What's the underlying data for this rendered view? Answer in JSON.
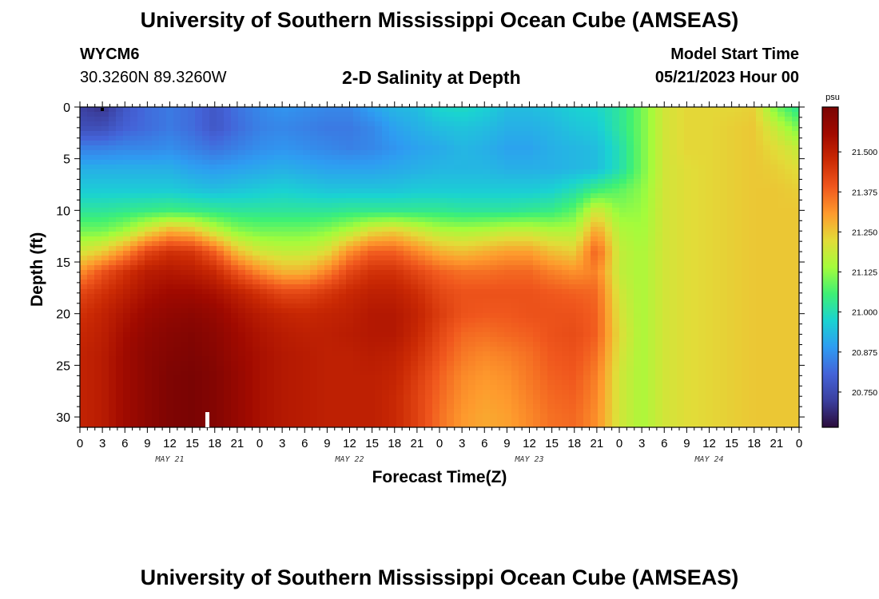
{
  "header": {
    "title": "University of Southern Mississippi Ocean Cube (AMSEAS)",
    "station_id": "WYCM6",
    "coords": "30.3260N  89.3260W",
    "plot_title": "2-D Salinity at Depth",
    "model_start_label": "Model Start Time",
    "model_start_value": "05/21/2023 Hour 00"
  },
  "footer": {
    "title": "University of Southern Mississippi Ocean Cube (AMSEAS)"
  },
  "colors": {
    "scale": [
      "#2b0c3b",
      "#3b3f9e",
      "#4463d8",
      "#2e9cf2",
      "#1ad3d1",
      "#3ef075",
      "#a4fc3b",
      "#e2dc38",
      "#fe9b2d",
      "#f0571d",
      "#cb2a04",
      "#a10a00",
      "#7a0403"
    ]
  },
  "chart_data": {
    "type": "heatmap",
    "title": "2-D Salinity at Depth",
    "xlabel": "Forecast Time(Z)",
    "ylabel": "Depth (ft)",
    "x_hours": [
      0,
      96
    ],
    "x_tick_labels": [
      "0",
      "3",
      "6",
      "9",
      "12",
      "15",
      "18",
      "21",
      "0",
      "3",
      "6",
      "9",
      "12",
      "15",
      "18",
      "21",
      "0",
      "3",
      "6",
      "9",
      "12",
      "15",
      "18",
      "21",
      "0",
      "3",
      "6",
      "9",
      "12",
      "15",
      "18",
      "21",
      "0"
    ],
    "day_labels": [
      "MAY 21",
      "MAY 22",
      "MAY 23",
      "MAY 24"
    ],
    "y_range_ft": [
      0,
      31
    ],
    "y_tick_labels": [
      "0",
      "5",
      "10",
      "15",
      "20",
      "25",
      "30"
    ],
    "colorbar": {
      "unit": "psu",
      "range": [
        20.64,
        21.64
      ],
      "ticks": [
        "21.500",
        "21.375",
        "21.250",
        "21.125",
        "21.000",
        "20.875",
        "20.750"
      ]
    },
    "salinity_psu": {
      "note_rows": "rows = depth 0,2,4,...,30 ft; columns = forecast hour 0,3,...,96",
      "depths_ft": [
        0,
        2,
        4,
        6,
        8,
        10,
        12,
        14,
        16,
        18,
        20,
        22,
        24,
        26,
        28,
        30
      ],
      "values": [
        [
          20.73,
          20.7,
          20.78,
          20.82,
          20.84,
          20.82,
          20.78,
          20.83,
          20.86,
          20.88,
          20.87,
          20.86,
          20.86,
          20.9,
          20.93,
          20.94,
          20.98,
          20.99,
          20.97,
          20.94,
          20.94,
          20.95,
          20.97,
          20.98,
          21.02,
          21.1,
          21.2,
          21.23,
          21.23,
          21.23,
          21.24,
          21.1,
          21.02
        ],
        [
          20.76,
          20.76,
          20.8,
          20.82,
          20.84,
          20.82,
          20.78,
          20.82,
          20.85,
          20.86,
          20.85,
          20.84,
          20.84,
          20.86,
          20.9,
          20.92,
          20.94,
          20.95,
          20.94,
          20.92,
          20.92,
          20.93,
          20.95,
          20.96,
          21.02,
          21.1,
          21.2,
          21.23,
          21.23,
          21.24,
          21.25,
          21.18,
          21.1
        ],
        [
          20.85,
          20.85,
          20.86,
          20.86,
          20.87,
          20.85,
          20.83,
          20.85,
          20.87,
          20.88,
          20.87,
          20.86,
          20.85,
          20.86,
          20.88,
          20.9,
          20.91,
          20.93,
          20.92,
          20.9,
          20.9,
          20.92,
          20.93,
          20.94,
          21.0,
          21.1,
          21.2,
          21.23,
          21.23,
          21.24,
          21.25,
          21.22,
          21.18
        ],
        [
          20.92,
          20.92,
          20.92,
          20.92,
          20.92,
          20.9,
          20.89,
          20.9,
          20.91,
          20.92,
          20.91,
          20.9,
          20.9,
          20.9,
          20.91,
          20.92,
          20.93,
          20.93,
          20.93,
          20.92,
          20.92,
          20.92,
          20.93,
          20.94,
          21.0,
          21.1,
          21.2,
          21.22,
          21.23,
          21.24,
          21.25,
          21.24,
          21.22
        ],
        [
          20.96,
          20.96,
          20.96,
          20.96,
          20.96,
          20.95,
          20.94,
          20.95,
          20.96,
          20.97,
          20.96,
          20.95,
          20.95,
          20.95,
          20.95,
          20.96,
          20.96,
          20.96,
          20.96,
          20.96,
          20.96,
          20.97,
          21.0,
          21.05,
          21.08,
          21.12,
          21.2,
          21.22,
          21.23,
          21.24,
          21.25,
          21.25,
          21.24
        ],
        [
          21.02,
          21.02,
          21.03,
          21.04,
          21.05,
          21.04,
          21.03,
          21.02,
          21.02,
          21.02,
          21.02,
          21.02,
          21.03,
          21.03,
          21.03,
          21.03,
          21.03,
          21.02,
          21.02,
          21.02,
          21.03,
          21.04,
          21.08,
          21.2,
          21.12,
          21.13,
          21.2,
          21.22,
          21.23,
          21.24,
          21.25,
          21.25,
          21.25
        ],
        [
          21.1,
          21.1,
          21.14,
          21.22,
          21.28,
          21.26,
          21.18,
          21.12,
          21.1,
          21.1,
          21.1,
          21.12,
          21.16,
          21.22,
          21.24,
          21.2,
          21.16,
          21.15,
          21.16,
          21.18,
          21.18,
          21.16,
          21.16,
          21.3,
          21.16,
          21.14,
          21.2,
          21.22,
          21.23,
          21.24,
          21.25,
          21.25,
          21.25
        ],
        [
          21.2,
          21.24,
          21.32,
          21.42,
          21.46,
          21.45,
          21.38,
          21.26,
          21.2,
          21.18,
          21.18,
          21.22,
          21.32,
          21.38,
          21.38,
          21.33,
          21.28,
          21.26,
          21.28,
          21.3,
          21.3,
          21.26,
          21.24,
          21.38,
          21.18,
          21.15,
          21.2,
          21.22,
          21.23,
          21.24,
          21.25,
          21.25,
          21.25
        ],
        [
          21.32,
          21.4,
          21.46,
          21.51,
          21.52,
          21.51,
          21.48,
          21.4,
          21.33,
          21.28,
          21.28,
          21.34,
          21.42,
          21.46,
          21.46,
          21.42,
          21.38,
          21.36,
          21.36,
          21.37,
          21.37,
          21.34,
          21.32,
          21.34,
          21.18,
          21.15,
          21.2,
          21.22,
          21.23,
          21.24,
          21.25,
          21.25,
          21.25
        ],
        [
          21.42,
          21.46,
          21.5,
          21.54,
          21.56,
          21.56,
          21.54,
          21.5,
          21.46,
          21.42,
          21.42,
          21.45,
          21.48,
          21.5,
          21.5,
          21.47,
          21.42,
          21.4,
          21.4,
          21.4,
          21.4,
          21.39,
          21.38,
          21.37,
          21.2,
          21.15,
          21.2,
          21.22,
          21.23,
          21.24,
          21.25,
          21.25,
          21.25
        ],
        [
          21.46,
          21.49,
          21.53,
          21.57,
          21.59,
          21.6,
          21.58,
          21.54,
          21.51,
          21.49,
          21.48,
          21.49,
          21.5,
          21.52,
          21.52,
          21.49,
          21.44,
          21.4,
          21.39,
          21.39,
          21.4,
          21.4,
          21.4,
          21.38,
          21.21,
          21.15,
          21.2,
          21.22,
          21.23,
          21.24,
          21.25,
          21.25,
          21.25
        ],
        [
          21.48,
          21.5,
          21.55,
          21.59,
          21.61,
          21.62,
          21.6,
          21.56,
          21.53,
          21.51,
          21.5,
          21.5,
          21.51,
          21.52,
          21.52,
          21.48,
          21.42,
          21.37,
          21.36,
          21.37,
          21.38,
          21.4,
          21.41,
          21.38,
          21.22,
          21.15,
          21.2,
          21.22,
          21.23,
          21.24,
          21.25,
          21.25,
          21.25
        ],
        [
          21.49,
          21.51,
          21.56,
          21.6,
          21.62,
          21.63,
          21.61,
          21.57,
          21.54,
          21.52,
          21.51,
          21.5,
          21.5,
          21.51,
          21.5,
          21.46,
          21.4,
          21.35,
          21.33,
          21.34,
          21.36,
          21.39,
          21.4,
          21.36,
          21.21,
          21.15,
          21.2,
          21.22,
          21.23,
          21.24,
          21.25,
          21.25,
          21.25
        ],
        [
          21.49,
          21.51,
          21.56,
          21.6,
          21.63,
          21.64,
          21.62,
          21.58,
          21.54,
          21.52,
          21.51,
          21.5,
          21.5,
          21.5,
          21.49,
          21.44,
          21.38,
          21.33,
          21.31,
          21.32,
          21.35,
          21.38,
          21.39,
          21.34,
          21.2,
          21.15,
          21.2,
          21.22,
          21.23,
          21.24,
          21.25,
          21.25,
          21.25
        ],
        [
          21.49,
          21.51,
          21.56,
          21.6,
          21.63,
          21.64,
          21.62,
          21.58,
          21.54,
          21.52,
          21.51,
          21.5,
          21.5,
          21.5,
          21.48,
          21.43,
          21.37,
          21.32,
          21.3,
          21.31,
          21.34,
          21.37,
          21.38,
          21.33,
          21.2,
          21.15,
          21.2,
          21.22,
          21.23,
          21.24,
          21.25,
          21.25,
          21.25
        ],
        [
          21.49,
          21.51,
          21.56,
          21.6,
          21.63,
          21.64,
          21.62,
          21.58,
          21.54,
          21.52,
          21.51,
          21.5,
          21.5,
          21.5,
          21.48,
          21.43,
          21.36,
          21.31,
          21.29,
          21.3,
          21.33,
          21.36,
          21.37,
          21.32,
          21.2,
          21.15,
          21.2,
          21.22,
          21.23,
          21.24,
          21.25,
          21.25,
          21.25
        ]
      ]
    }
  }
}
